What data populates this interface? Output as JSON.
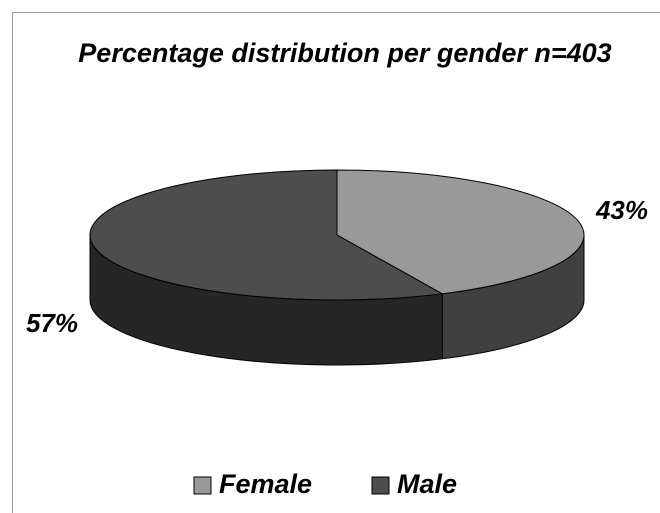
{
  "chart_data": {
    "type": "pie",
    "title": "Percentage distribution per gender n=403",
    "categories": [
      "Female",
      "Male"
    ],
    "values": [
      43,
      57
    ],
    "value_labels": [
      "43%",
      "57%"
    ],
    "colors": [
      "#999999",
      "#4d4d4d"
    ],
    "side_colors": [
      "#404040",
      "#262626"
    ],
    "legend": "bottom"
  }
}
